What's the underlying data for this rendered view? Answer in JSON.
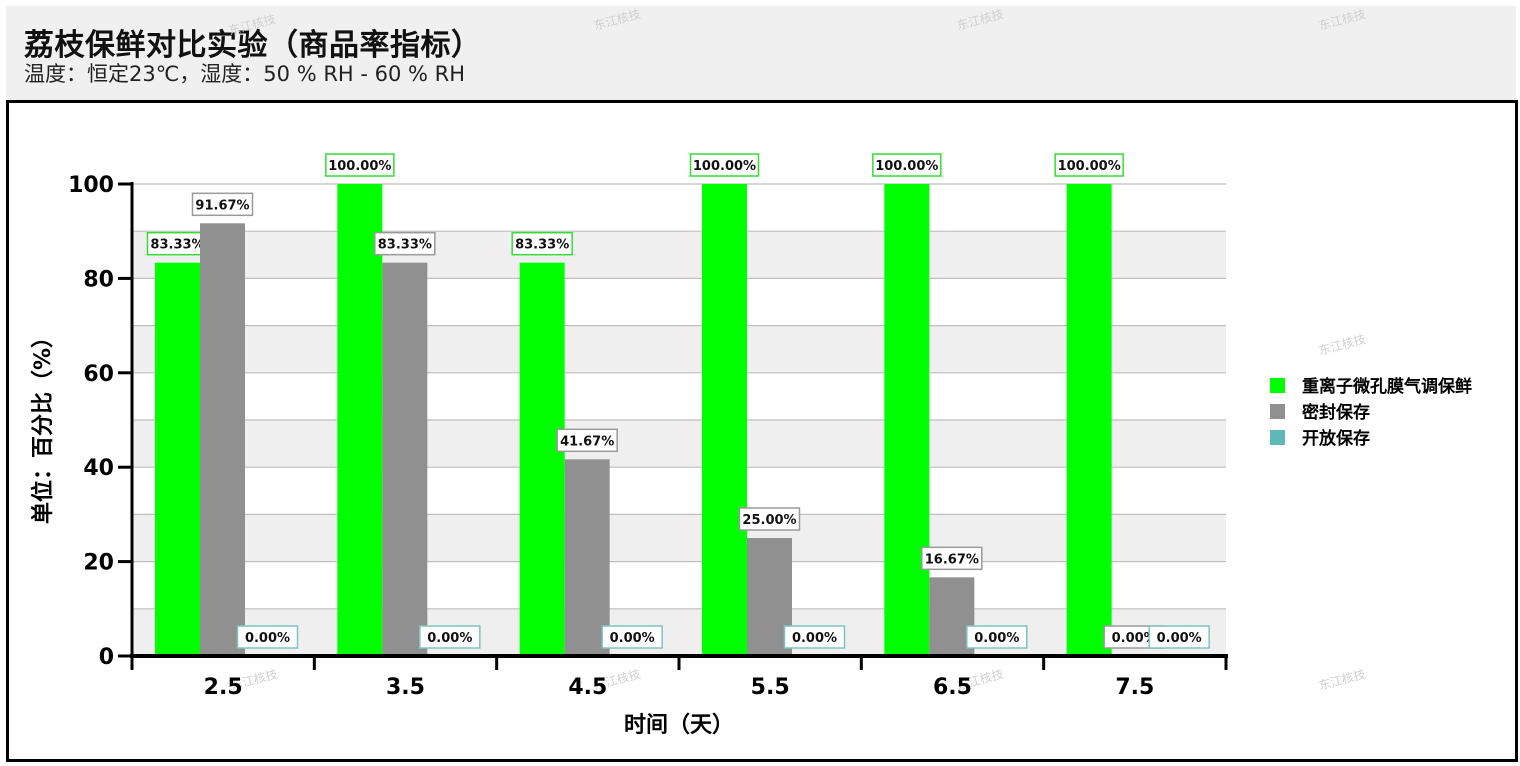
{
  "header": {
    "title": "荔枝保鲜对比实验（商品率指标）",
    "subtitle": "温度：恒定23℃，湿度：50 % RH - 60 % RH"
  },
  "watermark": "东江核技",
  "colors": {
    "series": [
      "#00ff00",
      "#909090",
      "#5fb8b8"
    ],
    "grid": "#bfbfbf",
    "band": "#efefef",
    "axis": "#000000"
  },
  "chart_data": {
    "type": "bar",
    "xlabel": "时间（天）",
    "ylabel": "单位：百分比（%）",
    "ylim": [
      0,
      100
    ],
    "yticks": [
      0,
      20,
      40,
      60,
      80,
      100
    ],
    "categories": [
      "2.5",
      "3.5",
      "4.5",
      "5.5",
      "6.5",
      "7.5"
    ],
    "series": [
      {
        "name": "重离子微孔膜气调保鲜",
        "values": [
          83.33,
          100,
          83.33,
          100,
          100,
          100
        ],
        "labels": [
          "83.33%",
          "100.00%",
          "83.33%",
          "100.00%",
          "100.00%",
          "100.00%"
        ]
      },
      {
        "name": "密封保存",
        "values": [
          91.67,
          83.33,
          41.67,
          25.0,
          16.67,
          0
        ],
        "labels": [
          "91.67%",
          "83.33%",
          "41.67%",
          "25.00%",
          "16.67%",
          "0.00%"
        ]
      },
      {
        "name": "开放保存",
        "values": [
          0,
          0,
          0,
          0,
          0,
          0
        ],
        "labels": [
          "0.00%",
          "0.00%",
          "0.00%",
          "0.00%",
          "0.00%",
          "0.00%"
        ]
      }
    ],
    "grid": true,
    "legend_position": "right"
  }
}
